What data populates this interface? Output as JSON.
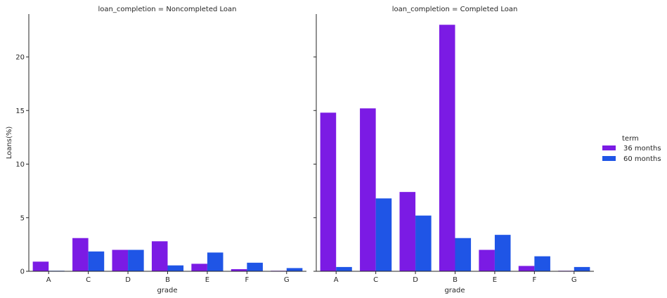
{
  "chart_data": {
    "type": "bar",
    "categories": [
      "A",
      "C",
      "D",
      "B",
      "E",
      "F",
      "G"
    ],
    "ylabel": "Loans(%)",
    "xlabel": "grade",
    "ylim": [
      0,
      24
    ],
    "yticks": [
      0,
      5,
      10,
      15,
      20
    ],
    "grid": false,
    "legend": {
      "title": "term",
      "placement": "right"
    },
    "colors": {
      "36 months": "#7b1be4",
      "60 months": "#1f55e6"
    },
    "facets": [
      {
        "title": "loan_completion = Noncompleted Loan",
        "series": [
          {
            "name": "36 months",
            "values": [
              0.9,
              3.1,
              2.0,
              2.8,
              0.7,
              0.2,
              0.05
            ]
          },
          {
            "name": "60 months",
            "values": [
              0.05,
              1.85,
              2.0,
              0.55,
              1.75,
              0.8,
              0.3
            ]
          }
        ]
      },
      {
        "title": "loan_completion = Completed Loan",
        "series": [
          {
            "name": "36 months",
            "values": [
              14.8,
              15.2,
              7.4,
              23.0,
              2.0,
              0.5,
              0.05
            ]
          },
          {
            "name": "60 months",
            "values": [
              0.4,
              6.8,
              5.2,
              3.1,
              3.4,
              1.4,
              0.4
            ]
          }
        ]
      }
    ]
  }
}
